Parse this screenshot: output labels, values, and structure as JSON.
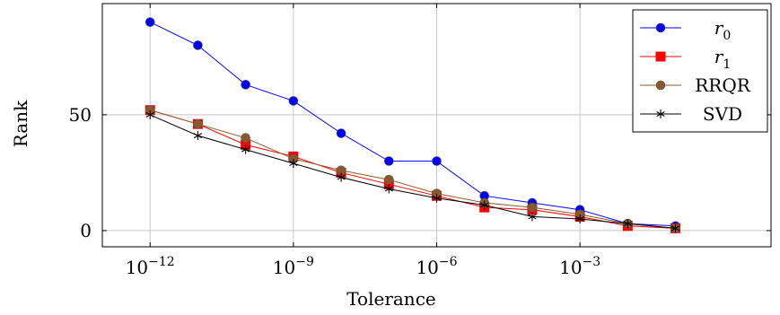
{
  "chart_data": {
    "type": "line",
    "xscale": "log",
    "xlabel": "Tolerance",
    "ylabel": "Rank",
    "xlim": [
      1e-13,
      10.0
    ],
    "ylim": [
      -7,
      98
    ],
    "grid": true,
    "legend_position": "top-right",
    "x": [
      1e-12,
      1e-11,
      1e-10,
      1e-09,
      1e-08,
      1e-07,
      1e-06,
      1e-05,
      0.0001,
      0.001,
      0.01,
      0.1
    ],
    "xticks": [
      {
        "value": 1e-12,
        "base": "10",
        "exp": "−12"
      },
      {
        "value": 1e-09,
        "base": "10",
        "exp": "−9"
      },
      {
        "value": 1e-06,
        "base": "10",
        "exp": "−6"
      },
      {
        "value": 0.001,
        "base": "10",
        "exp": "−3"
      }
    ],
    "yticks": [
      {
        "value": 0,
        "label": "0"
      },
      {
        "value": 50,
        "label": "50"
      }
    ],
    "series": [
      {
        "name": "r",
        "subscript": "0",
        "italic": true,
        "color": "#0000ff",
        "marker": "circle",
        "values": [
          90,
          80,
          63,
          56,
          42,
          30,
          30,
          15,
          12,
          9,
          3,
          2
        ]
      },
      {
        "name": "r",
        "subscript": "1",
        "italic": true,
        "color": "#ff0000",
        "marker": "square",
        "values": [
          52,
          46,
          37,
          32,
          25,
          20,
          15,
          10,
          9,
          6,
          2,
          1
        ]
      },
      {
        "name": "RRQR",
        "subscript": "",
        "italic": false,
        "color": "#8b5a2b",
        "marker": "circle",
        "values": [
          52,
          46,
          40,
          31,
          26,
          22,
          16,
          12,
          10,
          7,
          3,
          1
        ]
      },
      {
        "name": "SVD",
        "subscript": "",
        "italic": false,
        "color": "#000000",
        "marker": "star",
        "values": [
          50,
          41,
          35,
          29,
          23,
          18,
          14,
          11,
          6,
          5,
          3,
          1
        ]
      }
    ]
  }
}
